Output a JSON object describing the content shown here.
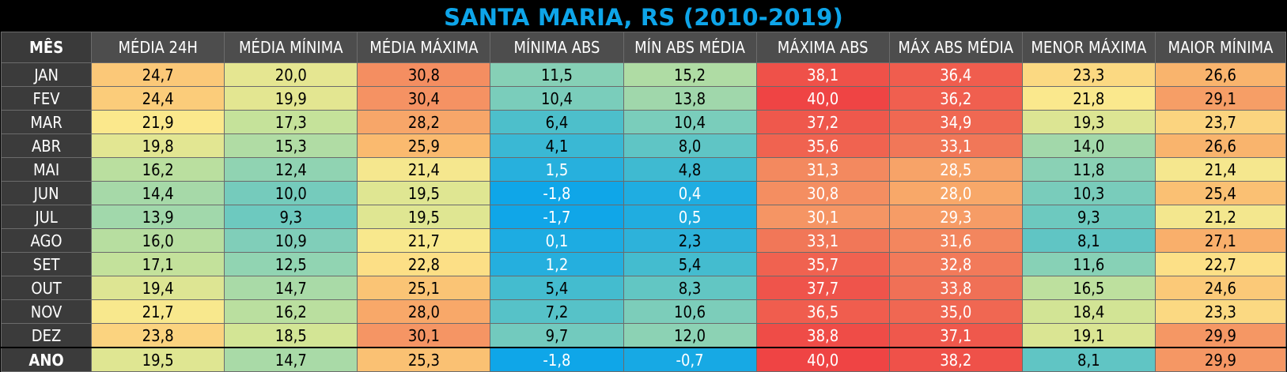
{
  "title": "SANTA MARIA, RS (2010-2019)",
  "headers": [
    "MÊS",
    "MÉDIA 24H",
    "MÉDIA MÍNIMA",
    "MÉDIA MÁXIMA",
    "MÍNIMA ABS",
    "MÍN ABS MÉDIA",
    "MÁXIMA ABS",
    "MÁX ABS MÉDIA",
    "MENOR MÁXIMA",
    "MAIOR MÍNIMA"
  ],
  "rows": [
    {
      "month": "JAN",
      "values": [
        "24,7",
        "20,0",
        "30,8",
        "11,5",
        "15,2",
        "38,1",
        "36,4",
        "23,3",
        "26,6"
      ]
    },
    {
      "month": "FEV",
      "values": [
        "24,4",
        "19,9",
        "30,4",
        "10,4",
        "13,8",
        "40,0",
        "36,2",
        "21,8",
        "29,1"
      ]
    },
    {
      "month": "MAR",
      "values": [
        "21,9",
        "17,3",
        "28,2",
        "6,4",
        "10,4",
        "37,2",
        "34,9",
        "19,3",
        "23,7"
      ]
    },
    {
      "month": "ABR",
      "values": [
        "19,8",
        "15,3",
        "25,9",
        "4,1",
        "8,0",
        "35,6",
        "33,1",
        "14,0",
        "26,6"
      ]
    },
    {
      "month": "MAI",
      "values": [
        "16,2",
        "12,4",
        "21,4",
        "1,5",
        "4,8",
        "31,3",
        "28,5",
        "11,8",
        "21,4"
      ]
    },
    {
      "month": "JUN",
      "values": [
        "14,4",
        "10,0",
        "19,5",
        "-1,8",
        "0,4",
        "30,8",
        "28,0",
        "10,3",
        "25,4"
      ]
    },
    {
      "month": "JUL",
      "values": [
        "13,9",
        "9,3",
        "19,5",
        "-1,7",
        "0,5",
        "30,1",
        "29,3",
        "9,3",
        "21,2"
      ]
    },
    {
      "month": "AGO",
      "values": [
        "16,0",
        "10,9",
        "21,7",
        "0,1",
        "2,3",
        "33,1",
        "31,6",
        "8,1",
        "27,1"
      ]
    },
    {
      "month": "SET",
      "values": [
        "17,1",
        "12,5",
        "22,8",
        "1,2",
        "5,4",
        "35,7",
        "32,8",
        "11,6",
        "22,7"
      ]
    },
    {
      "month": "OUT",
      "values": [
        "19,4",
        "14,7",
        "25,1",
        "5,4",
        "8,3",
        "37,7",
        "33,8",
        "16,5",
        "24,6"
      ]
    },
    {
      "month": "NOV",
      "values": [
        "21,7",
        "16,2",
        "28,0",
        "7,2",
        "10,6",
        "36,5",
        "35,0",
        "18,4",
        "23,3"
      ]
    },
    {
      "month": "DEZ",
      "values": [
        "23,8",
        "18,5",
        "30,1",
        "9,7",
        "12,0",
        "38,8",
        "37,1",
        "19,1",
        "29,9"
      ]
    }
  ],
  "year_row": {
    "month": "ANO",
    "values": [
      "19,5",
      "14,7",
      "25,3",
      "-1,8",
      "-0,7",
      "40,0",
      "38,2",
      "8,1",
      "29,9"
    ]
  },
  "colors": {
    "title": "#0ea5e9",
    "header_bg": "#4d4d4d",
    "month_bg": "#3b3b3b",
    "scale_cold": "#0ea5e9",
    "scale_mid": "#fde68a",
    "scale_hot": "#ef4444"
  }
}
